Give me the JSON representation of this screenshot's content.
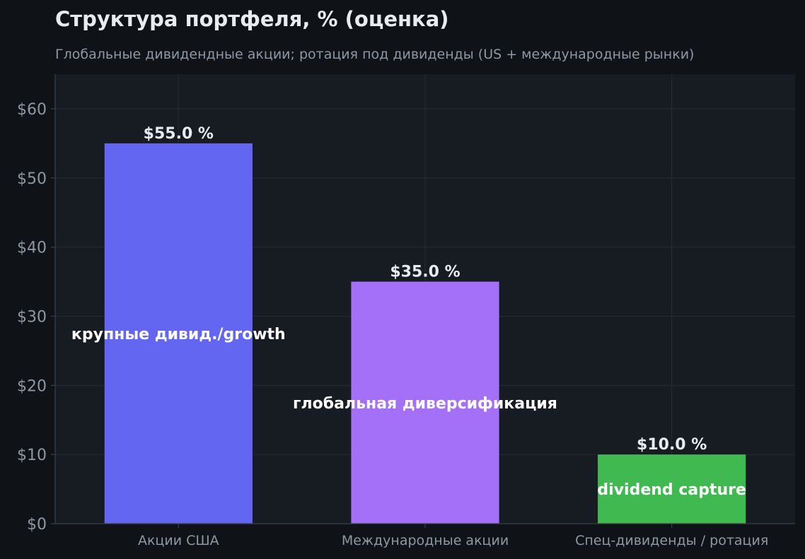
{
  "colors": {
    "background": "#0f1317",
    "plot_background": "#171b22",
    "grid": "#262c35",
    "axis": "#3a4049",
    "tick_text": "#8f97a0",
    "value_label": "#e8ebef",
    "inner_label": "#ffffff"
  },
  "chart_data": {
    "type": "bar",
    "title": "Структура портфеля, % (оценка)",
    "subtitle": "Глобальные дивидендные акции; ротация под дивиденды (US + международные рынки)",
    "xlabel": "",
    "ylabel": "",
    "categories": [
      "Акции США",
      "Международные акции",
      "Спец-дивиденды / ротация"
    ],
    "values": [
      55.0,
      35.0,
      10.0
    ],
    "value_labels": [
      "$55.0 %",
      "$35.0 %",
      "$10.0 %"
    ],
    "inner_labels": [
      "крупные дивид./growth",
      "глобальная диверсификация",
      "dividend capture"
    ],
    "bar_colors": [
      "#6366f1",
      "#a370f7",
      "#3fb950"
    ],
    "ylim": [
      0,
      65
    ],
    "yticks": [
      0,
      10,
      20,
      30,
      40,
      50,
      60
    ],
    "ytick_labels": [
      "$0",
      "$10",
      "$20",
      "$30",
      "$40",
      "$50",
      "$60"
    ],
    "grid": true,
    "legend": "none"
  }
}
